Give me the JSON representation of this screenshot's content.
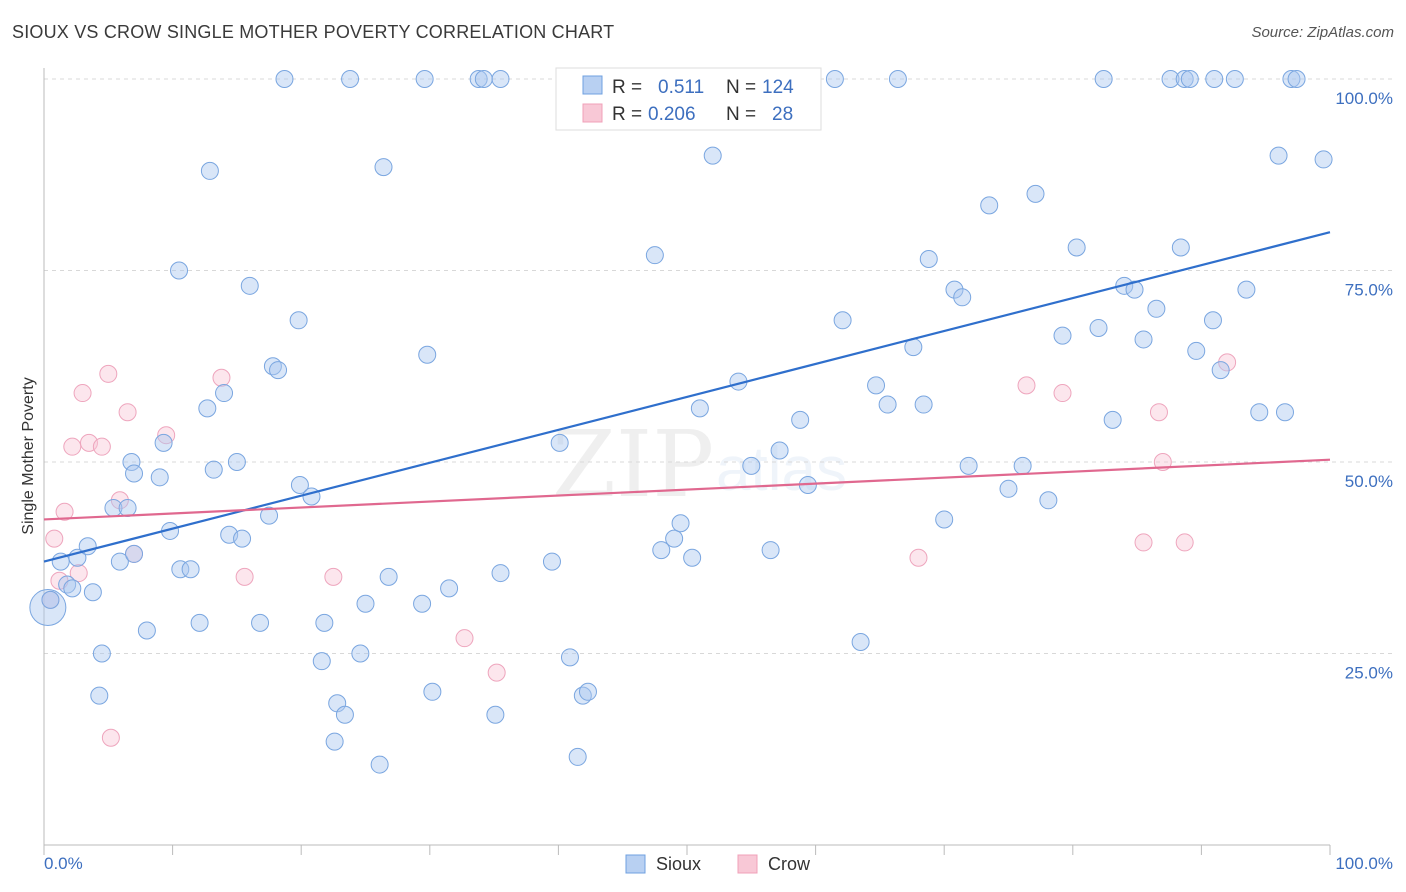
{
  "title": "SIOUX VS CROW SINGLE MOTHER POVERTY CORRELATION CHART",
  "source": "Source: ZipAtlas.com",
  "watermark": {
    "zip": "ZIP",
    "atlas": "atlas"
  },
  "legend": {
    "r_label": "R =",
    "n_label": "N =",
    "rows": [
      {
        "r": "0.511",
        "n": "124"
      },
      {
        "r": "0.206",
        "n": "28"
      }
    ]
  },
  "chart_data": {
    "type": "scatter",
    "title": "SIOUX VS CROW SINGLE MOTHER POVERTY CORRELATION CHART",
    "xlabel": "",
    "ylabel": "Single Mother Poverty",
    "xlim": [
      0,
      100
    ],
    "ylim": [
      0,
      100
    ],
    "x_tick_labels": [
      "0.0%",
      "100.0%"
    ],
    "y_tick_labels": [
      "25.0%",
      "50.0%",
      "75.0%",
      "100.0%"
    ],
    "y_ticks": [
      25,
      50,
      75,
      100
    ],
    "grid": true,
    "legend_position": "top-center",
    "colors": {
      "sioux": "#6fa0e0",
      "sioux_line": "#2f6fcc",
      "crow": "#f0a0b8",
      "crow_line": "#e0688f"
    },
    "series": [
      {
        "name": "Sioux",
        "r": 0.511,
        "n": 124,
        "trend": {
          "x": [
            0,
            100
          ],
          "y": [
            37.0,
            80.0
          ]
        },
        "points": [
          [
            0.3,
            31.0
          ],
          [
            0.5,
            32.0
          ],
          [
            1.3,
            37.0
          ],
          [
            1.8,
            34.0
          ],
          [
            2.2,
            33.5
          ],
          [
            2.6,
            37.5
          ],
          [
            3.4,
            39.0
          ],
          [
            3.8,
            33.0
          ],
          [
            4.5,
            25.0
          ],
          [
            4.3,
            19.5
          ],
          [
            5.4,
            44.0
          ],
          [
            5.9,
            37.0
          ],
          [
            6.5,
            44.0
          ],
          [
            7.0,
            38.0
          ],
          [
            8.0,
            28.0
          ],
          [
            6.8,
            50.0
          ],
          [
            7.0,
            48.5
          ],
          [
            9.0,
            48.0
          ],
          [
            9.3,
            52.5
          ],
          [
            9.8,
            41.0
          ],
          [
            10.5,
            75.0
          ],
          [
            10.6,
            36.0
          ],
          [
            11.4,
            36.0
          ],
          [
            12.1,
            29.0
          ],
          [
            12.7,
            57.0
          ],
          [
            12.9,
            88.0
          ],
          [
            13.2,
            49.0
          ],
          [
            14.0,
            59.0
          ],
          [
            14.4,
            40.5
          ],
          [
            15.0,
            50.0
          ],
          [
            15.4,
            40.0
          ],
          [
            16.0,
            73.0
          ],
          [
            16.8,
            29.0
          ],
          [
            17.5,
            43.0
          ],
          [
            17.8,
            62.5
          ],
          [
            18.2,
            62.0
          ],
          [
            18.7,
            100.0
          ],
          [
            19.8,
            68.5
          ],
          [
            19.9,
            47.0
          ],
          [
            20.8,
            45.5
          ],
          [
            21.6,
            24.0
          ],
          [
            21.8,
            29.0
          ],
          [
            22.6,
            13.5
          ],
          [
            22.8,
            18.5
          ],
          [
            23.4,
            17.0
          ],
          [
            23.8,
            100.0
          ],
          [
            24.6,
            25.0
          ],
          [
            25.0,
            31.5
          ],
          [
            26.1,
            10.5
          ],
          [
            26.4,
            88.5
          ],
          [
            26.8,
            35.0
          ],
          [
            29.4,
            31.5
          ],
          [
            29.6,
            100.0
          ],
          [
            29.8,
            64.0
          ],
          [
            30.2,
            20.0
          ],
          [
            31.5,
            33.5
          ],
          [
            33.8,
            100.0
          ],
          [
            34.2,
            100.0
          ],
          [
            35.1,
            17.0
          ],
          [
            35.5,
            100.0
          ],
          [
            35.5,
            35.5
          ],
          [
            39.5,
            37.0
          ],
          [
            40.1,
            52.5
          ],
          [
            40.9,
            24.5
          ],
          [
            41.5,
            11.5
          ],
          [
            41.9,
            19.5
          ],
          [
            42.3,
            20.0
          ],
          [
            43.5,
            100.0
          ],
          [
            47.5,
            77.0
          ],
          [
            48.0,
            38.5
          ],
          [
            49.0,
            40.0
          ],
          [
            49.5,
            42.0
          ],
          [
            50.4,
            37.5
          ],
          [
            51.0,
            57.0
          ],
          [
            51.5,
            100.0
          ],
          [
            52.0,
            90.0
          ],
          [
            52.5,
            100.0
          ],
          [
            54.0,
            60.5
          ],
          [
            55.0,
            49.5
          ],
          [
            56.5,
            38.5
          ],
          [
            57.2,
            51.5
          ],
          [
            58.8,
            55.5
          ],
          [
            59.4,
            47.0
          ],
          [
            61.5,
            100.0
          ],
          [
            62.1,
            68.5
          ],
          [
            63.5,
            26.5
          ],
          [
            64.7,
            60.0
          ],
          [
            65.6,
            57.5
          ],
          [
            66.4,
            100.0
          ],
          [
            67.6,
            65.0
          ],
          [
            68.4,
            57.5
          ],
          [
            68.8,
            76.5
          ],
          [
            70.0,
            42.5
          ],
          [
            70.8,
            72.5
          ],
          [
            71.4,
            71.5
          ],
          [
            71.9,
            49.5
          ],
          [
            73.5,
            83.5
          ],
          [
            75.0,
            46.5
          ],
          [
            76.1,
            49.5
          ],
          [
            77.1,
            85.0
          ],
          [
            78.1,
            45.0
          ],
          [
            79.2,
            66.5
          ],
          [
            80.3,
            78.0
          ],
          [
            82.0,
            67.5
          ],
          [
            82.4,
            100.0
          ],
          [
            83.1,
            55.5
          ],
          [
            84.0,
            73.0
          ],
          [
            84.8,
            72.5
          ],
          [
            85.5,
            66.0
          ],
          [
            86.5,
            70.0
          ],
          [
            87.6,
            100.0
          ],
          [
            88.4,
            78.0
          ],
          [
            88.7,
            100.0
          ],
          [
            89.1,
            100.0
          ],
          [
            89.6,
            64.5
          ],
          [
            90.9,
            68.5
          ],
          [
            91.5,
            62.0
          ],
          [
            92.6,
            100.0
          ],
          [
            93.5,
            72.5
          ],
          [
            94.5,
            56.5
          ],
          [
            96.0,
            90.0
          ],
          [
            96.5,
            56.5
          ],
          [
            97.0,
            100.0
          ],
          [
            97.4,
            100.0
          ],
          [
            99.5,
            89.5
          ],
          [
            91.0,
            100.0
          ]
        ]
      },
      {
        "name": "Crow",
        "r": 0.206,
        "n": 28,
        "trend": {
          "x": [
            0,
            100
          ],
          "y": [
            42.5,
            50.3
          ]
        },
        "points": [
          [
            0.5,
            32.0
          ],
          [
            0.8,
            40.0
          ],
          [
            1.2,
            34.5
          ],
          [
            1.6,
            43.5
          ],
          [
            2.2,
            52.0
          ],
          [
            2.7,
            35.5
          ],
          [
            3.0,
            59.0
          ],
          [
            3.5,
            52.5
          ],
          [
            4.5,
            52.0
          ],
          [
            5.0,
            61.5
          ],
          [
            5.2,
            14.0
          ],
          [
            5.9,
            45.0
          ],
          [
            6.5,
            56.5
          ],
          [
            7.0,
            38.0
          ],
          [
            9.5,
            53.5
          ],
          [
            13.8,
            61.0
          ],
          [
            15.6,
            35.0
          ],
          [
            22.5,
            35.0
          ],
          [
            32.7,
            27.0
          ],
          [
            35.2,
            22.5
          ],
          [
            68.0,
            37.5
          ],
          [
            76.4,
            60.0
          ],
          [
            79.2,
            59.0
          ],
          [
            85.5,
            39.5
          ],
          [
            86.7,
            56.5
          ],
          [
            87.0,
            50.0
          ],
          [
            88.7,
            39.5
          ],
          [
            92.0,
            63.0
          ]
        ]
      }
    ]
  }
}
